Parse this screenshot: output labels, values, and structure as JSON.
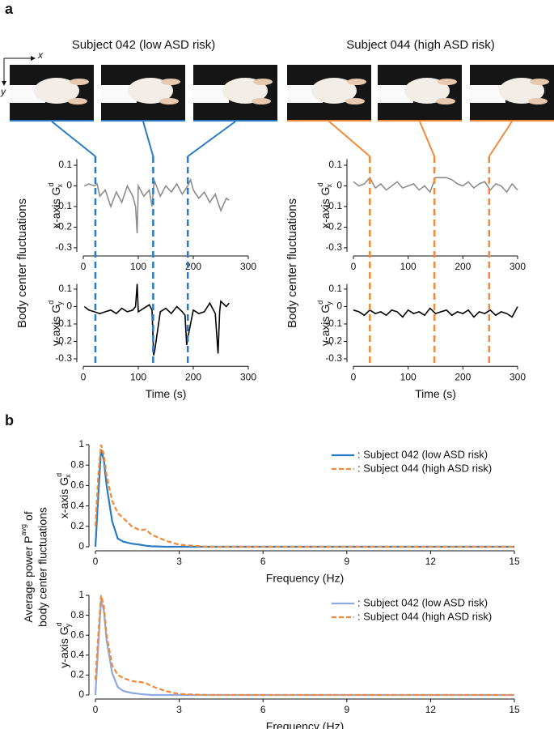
{
  "panel_labels": [
    "a",
    "b"
  ],
  "axes_icon": {
    "x": "x",
    "y": "y"
  },
  "subjects": [
    {
      "title": "Subject 042 (low ASD risk)",
      "color": "#2a7bc4",
      "ylabel": "Body center fluctuations",
      "events": [
        22,
        127,
        190
      ]
    },
    {
      "title": "Subject 044 (high ASD risk)",
      "color": "#f08a3a",
      "ylabel": "Body center fluctuations",
      "events": [
        30,
        148,
        248
      ]
    }
  ],
  "panel_b_ylabel": {
    "line1": "Average power P",
    "sup": "avg",
    "line1_end": "of",
    "line2": "body center fluctuations"
  },
  "chart_data": [
    {
      "type": "line",
      "ylabel": "x-axis G",
      "ylabel_sup": "d",
      "ylabel_sub": "x",
      "xlim": [
        0,
        300
      ],
      "xticks": [
        0,
        100,
        200,
        300
      ],
      "ylim": [
        -0.32,
        0.13
      ],
      "yticks": [
        0.1,
        0,
        -0.1,
        -0.2,
        -0.3
      ],
      "x": [
        2,
        10,
        20,
        25,
        30,
        40,
        50,
        60,
        70,
        80,
        90,
        95,
        98,
        100,
        110,
        120,
        125,
        128,
        130,
        140,
        150,
        160,
        170,
        180,
        190,
        195,
        200,
        210,
        220,
        230,
        240,
        250,
        260,
        265
      ],
      "series": [
        {
          "color": "#8c8c8c",
          "values": [
            0,
            0.01,
            0,
            0.01,
            -0.05,
            -0.02,
            -0.1,
            -0.03,
            -0.08,
            0,
            -0.05,
            -0.1,
            -0.23,
            0,
            -0.05,
            -0.02,
            -0.1,
            0,
            0.02,
            -0.05,
            0,
            -0.03,
            0.01,
            -0.04,
            0,
            0.03,
            -0.02,
            -0.06,
            -0.03,
            -0.08,
            -0.04,
            -0.12,
            -0.06,
            -0.07
          ]
        }
      ]
    },
    {
      "type": "line",
      "ylabel": "y-axis G",
      "ylabel_sup": "d",
      "ylabel_sub": "y",
      "xlabel": "Time (s)",
      "xlim": [
        0,
        300
      ],
      "xticks": [
        0,
        100,
        200,
        300
      ],
      "ylim": [
        -0.32,
        0.13
      ],
      "yticks": [
        0.1,
        0,
        -0.1,
        -0.2,
        -0.3
      ],
      "x": [
        2,
        10,
        20,
        30,
        40,
        50,
        60,
        70,
        80,
        90,
        95,
        98,
        100,
        110,
        120,
        125,
        128,
        130,
        140,
        150,
        160,
        170,
        180,
        185,
        188,
        190,
        200,
        210,
        220,
        230,
        240,
        245,
        248,
        250,
        260,
        265
      ],
      "series": [
        {
          "color": "#000000",
          "values": [
            0,
            -0.02,
            -0.03,
            -0.04,
            -0.03,
            -0.02,
            -0.04,
            -0.01,
            -0.03,
            -0.02,
            0,
            0.13,
            -0.03,
            -0.01,
            0.01,
            -0.02,
            -0.28,
            -0.25,
            -0.03,
            -0.01,
            -0.04,
            0,
            -0.03,
            -0.05,
            -0.22,
            -0.18,
            -0.02,
            -0.04,
            -0.03,
            0.02,
            -0.04,
            -0.27,
            -0.03,
            0.03,
            0,
            0.02
          ]
        }
      ]
    },
    {
      "type": "line",
      "ylabel": "x-axis G",
      "ylabel_sup": "d",
      "ylabel_sub": "x",
      "xlim": [
        0,
        300
      ],
      "xticks": [
        0,
        100,
        200,
        300
      ],
      "ylim": [
        -0.32,
        0.13
      ],
      "yticks": [
        0.1,
        0,
        -0.1,
        -0.2,
        -0.3
      ],
      "x": [
        0,
        10,
        20,
        30,
        40,
        50,
        60,
        70,
        80,
        90,
        100,
        110,
        120,
        130,
        140,
        150,
        160,
        170,
        180,
        190,
        200,
        210,
        220,
        230,
        240,
        250,
        260,
        270,
        280,
        290,
        300
      ],
      "series": [
        {
          "color": "#8c8c8c",
          "values": [
            0.02,
            0,
            0.01,
            0.04,
            -0.01,
            0.01,
            -0.02,
            0,
            0.02,
            -0.01,
            0,
            0.01,
            -0.02,
            0,
            -0.03,
            0.04,
            0.04,
            0.04,
            0.03,
            0.01,
            0,
            0.02,
            -0.01,
            0.01,
            0.02,
            -0.02,
            0.01,
            0,
            -0.03,
            0.01,
            -0.02
          ]
        }
      ]
    },
    {
      "type": "line",
      "ylabel": "y-axis G",
      "ylabel_sup": "d",
      "ylabel_sub": "y",
      "xlabel": "Time (s)",
      "xlim": [
        0,
        300
      ],
      "xticks": [
        0,
        100,
        200,
        300
      ],
      "ylim": [
        -0.32,
        0.13
      ],
      "yticks": [
        0.1,
        0,
        -0.1,
        -0.2,
        -0.3
      ],
      "x": [
        0,
        10,
        20,
        30,
        40,
        50,
        60,
        70,
        80,
        90,
        100,
        110,
        120,
        130,
        140,
        150,
        160,
        170,
        180,
        190,
        200,
        210,
        220,
        230,
        240,
        250,
        260,
        270,
        280,
        290,
        300
      ],
      "series": [
        {
          "color": "#000000",
          "values": [
            -0.02,
            -0.03,
            -0.05,
            -0.02,
            -0.04,
            -0.03,
            -0.05,
            -0.02,
            -0.03,
            -0.06,
            -0.02,
            -0.04,
            -0.03,
            -0.05,
            -0.01,
            -0.04,
            -0.03,
            -0.02,
            -0.05,
            -0.03,
            -0.04,
            -0.02,
            -0.06,
            -0.03,
            -0.04,
            -0.02,
            -0.05,
            -0.03,
            -0.04,
            -0.06,
            0
          ]
        }
      ]
    },
    {
      "type": "line",
      "ylabel": "x-axis G",
      "ylabel_sup": "d",
      "ylabel_sub": "x",
      "xlabel": "Frequency (Hz)",
      "legend": true,
      "xlim": [
        0,
        15
      ],
      "xticks": [
        0,
        3,
        6,
        9,
        12,
        15
      ],
      "ylim": [
        0,
        1
      ],
      "yticks": [
        0,
        0.2,
        0.4,
        0.6,
        0.8,
        1
      ],
      "x": [
        0,
        0.1,
        0.2,
        0.3,
        0.4,
        0.6,
        0.8,
        1,
        1.3,
        1.6,
        1.8,
        2,
        2.5,
        3,
        4,
        6,
        9,
        12,
        15
      ],
      "series": [
        {
          "name": ": Subject 042 (low ASD risk)",
          "color": "#2a7bc4",
          "dash": false,
          "values": [
            0,
            0.5,
            0.95,
            0.85,
            0.6,
            0.25,
            0.08,
            0.05,
            0.03,
            0.02,
            0.01,
            0.005,
            0,
            0,
            0,
            0,
            0,
            0,
            0
          ]
        },
        {
          "name": ": Subject 044 (high ASD risk)",
          "color": "#f08a3a",
          "dash": true,
          "values": [
            0.2,
            0.7,
            1,
            0.9,
            0.7,
            0.45,
            0.33,
            0.28,
            0.2,
            0.16,
            0.17,
            0.12,
            0.06,
            0.02,
            0,
            0,
            0,
            0,
            0
          ]
        }
      ]
    },
    {
      "type": "line",
      "ylabel": "y-axis G",
      "ylabel_sup": "d",
      "ylabel_sub": "y",
      "xlabel": "Frequency (Hz)",
      "legend": true,
      "xlim": [
        0,
        15
      ],
      "xticks": [
        0,
        3,
        6,
        9,
        12,
        15
      ],
      "ylim": [
        0,
        1
      ],
      "yticks": [
        0,
        0.2,
        0.4,
        0.6,
        0.8,
        1
      ],
      "x": [
        0,
        0.1,
        0.2,
        0.3,
        0.4,
        0.6,
        0.8,
        1,
        1.3,
        1.6,
        1.8,
        2,
        2.5,
        3,
        4,
        6,
        9,
        12,
        15
      ],
      "series": [
        {
          "name": ": Subject 042 (low ASD risk)",
          "color": "#8fa8e0",
          "dash": false,
          "values": [
            0,
            0.5,
            0.95,
            0.85,
            0.55,
            0.22,
            0.08,
            0.04,
            0.02,
            0.01,
            0.005,
            0,
            0,
            0,
            0,
            0,
            0,
            0,
            0
          ]
        },
        {
          "name": ": Subject 044 (high ASD risk)",
          "color": "#f08a3a",
          "dash": true,
          "values": [
            0.15,
            0.6,
            1,
            0.9,
            0.6,
            0.3,
            0.2,
            0.17,
            0.14,
            0.13,
            0.12,
            0.09,
            0.04,
            0.01,
            0,
            0,
            0,
            0,
            0
          ]
        }
      ]
    }
  ]
}
